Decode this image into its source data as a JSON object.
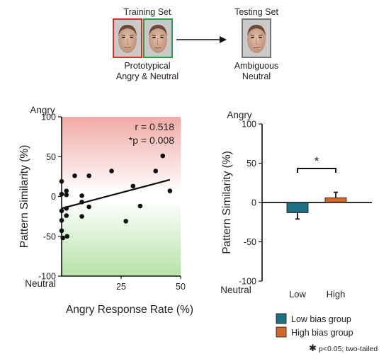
{
  "schematic": {
    "training_title": "Training Set",
    "training_caption_line1": "Prototypical",
    "training_caption_line2": "Angry & Neutral",
    "testing_title": "Testing Set",
    "testing_caption_line1": "Ambiguous",
    "testing_caption_line2": "Neutral",
    "angry_frame_color": "#d0312d",
    "neutral_frame_color": "#2e9e4b",
    "test_frame_color": "#777777"
  },
  "footnote": "p<0.05; two-tailed",
  "footnote_symbol": "✱",
  "chart_data": [
    {
      "type": "scatter",
      "xlabel": "Angry Response Rate (%)",
      "ylabel": "Pattern Similarity (%)",
      "xlim": [
        0,
        50
      ],
      "ylim": [
        -100,
        100
      ],
      "xticks": [
        {
          "v": 25,
          "label": "25"
        },
        {
          "v": 50,
          "label": "50"
        }
      ],
      "yticks": [
        {
          "v": 100,
          "label": "100"
        },
        {
          "v": 50,
          "label": "50"
        },
        {
          "v": 0,
          "label": "0"
        },
        {
          "v": -50,
          "label": "-50"
        },
        {
          "v": -100,
          "label": "-100"
        }
      ],
      "top_label": "Angry",
      "bottom_label": "Neutral",
      "top_label_color": "#b2272e",
      "bottom_label_color": "#1f7a3a",
      "annotation_r": "r = 0.518",
      "annotation_p": "*p = 0.008",
      "points": [
        {
          "x": 0.0,
          "y": 19
        },
        {
          "x": 0.0,
          "y": 3
        },
        {
          "x": 0.0,
          "y": -18
        },
        {
          "x": 0.0,
          "y": -30
        },
        {
          "x": 0.0,
          "y": -43
        },
        {
          "x": 0.5,
          "y": -52
        },
        {
          "x": 2.0,
          "y": 7
        },
        {
          "x": 2.0,
          "y": 2
        },
        {
          "x": 2.0,
          "y": -15
        },
        {
          "x": 2.0,
          "y": -24
        },
        {
          "x": 2.3,
          "y": -50
        },
        {
          "x": 5.5,
          "y": 26
        },
        {
          "x": 8.5,
          "y": 1
        },
        {
          "x": 8.5,
          "y": -7
        },
        {
          "x": 8.5,
          "y": -25
        },
        {
          "x": 11.5,
          "y": 26
        },
        {
          "x": 11.5,
          "y": -13
        },
        {
          "x": 21.0,
          "y": 32
        },
        {
          "x": 27.0,
          "y": -31
        },
        {
          "x": 30.0,
          "y": 13
        },
        {
          "x": 33.0,
          "y": -12
        },
        {
          "x": 39.5,
          "y": 32
        },
        {
          "x": 42.5,
          "y": 51
        },
        {
          "x": 45.5,
          "y": 7
        }
      ],
      "fit_line": [
        {
          "x": 0,
          "y": -15
        },
        {
          "x": 45.5,
          "y": 21
        }
      ],
      "angry_zone_color": "#f2aaa5",
      "neutral_zone_color": "#b6e2a8"
    },
    {
      "type": "bar",
      "xlabel": "",
      "ylabel": "Pattern Similarity (%)",
      "categories": [
        "Low",
        "High"
      ],
      "values": [
        -13,
        6
      ],
      "errors": [
        8,
        7
      ],
      "ylim": [
        -100,
        100
      ],
      "yticks": [
        {
          "v": 100,
          "label": "100"
        },
        {
          "v": 50,
          "label": "50"
        },
        {
          "v": 0,
          "label": "0"
        },
        {
          "v": -50,
          "label": "-50"
        },
        {
          "v": -100,
          "label": "-100"
        }
      ],
      "top_label": "Angry",
      "bottom_label": "Neutral",
      "top_label_color": "#b2272e",
      "bottom_label_color": "#1f7a3a",
      "significance": "*",
      "colors": [
        "#1e6f82",
        "#d06a2c"
      ],
      "legend": [
        "Low bias group",
        "High bias group"
      ],
      "legend_position": "bottom"
    }
  ]
}
